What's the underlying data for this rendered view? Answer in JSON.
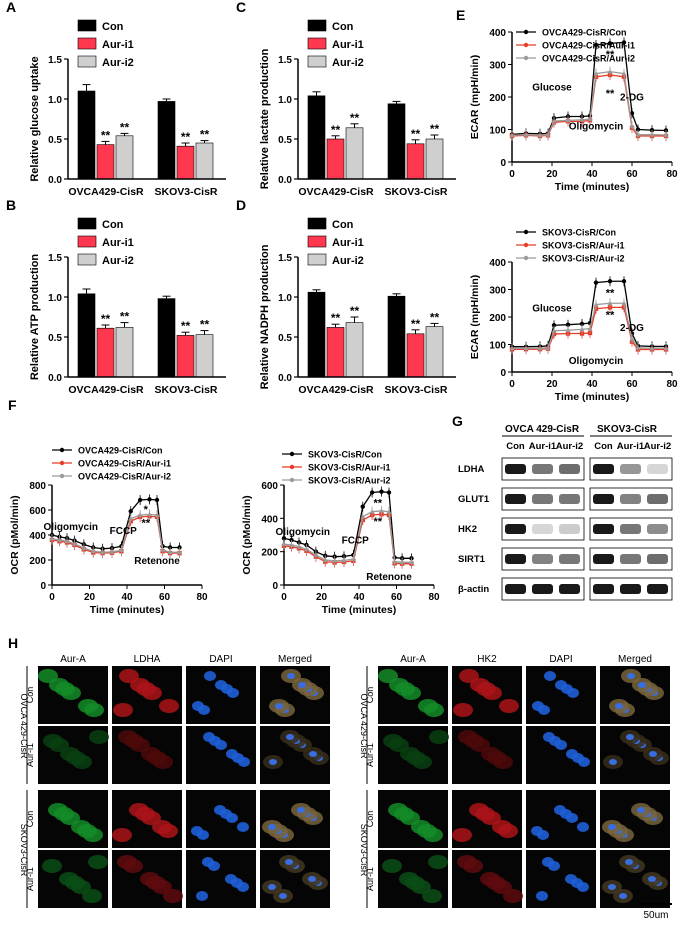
{
  "panels": {
    "A": {
      "letter": "A",
      "ylabel": "Relative glucose uptake",
      "ylim": [
        0,
        1.5
      ],
      "yticks": [
        "0.0",
        "0.5",
        "1.0",
        "1.5"
      ],
      "groups": [
        "OVCA429-CisR",
        "SKOV3-CisR"
      ],
      "values": [
        [
          1.1,
          0.43,
          0.54
        ],
        [
          0.97,
          0.41,
          0.45
        ]
      ],
      "errors": [
        [
          0.08,
          0.04,
          0.03
        ],
        [
          0.03,
          0.04,
          0.03
        ]
      ],
      "marks": [
        [
          "",
          "**",
          "**"
        ],
        [
          "",
          "**",
          "**"
        ]
      ]
    },
    "B": {
      "letter": "B",
      "ylabel": "Relative ATP production",
      "ylim": [
        0,
        1.5
      ],
      "yticks": [
        "0.0",
        "0.5",
        "1.0",
        "1.5"
      ],
      "groups": [
        "OVCA429-CisR",
        "SKOV3-CisR"
      ],
      "values": [
        [
          1.04,
          0.61,
          0.62
        ],
        [
          0.98,
          0.52,
          0.53
        ]
      ],
      "errors": [
        [
          0.06,
          0.04,
          0.06
        ],
        [
          0.03,
          0.04,
          0.05
        ]
      ],
      "marks": [
        [
          "",
          "**",
          "**"
        ],
        [
          "",
          "**",
          "**"
        ]
      ]
    },
    "C": {
      "letter": "C",
      "ylabel": "Relative lactate production",
      "ylim": [
        0,
        1.5
      ],
      "yticks": [
        "0.0",
        "0.5",
        "1.0",
        "1.5"
      ],
      "groups": [
        "OVCA429-CisR",
        "SKOV3-CisR"
      ],
      "values": [
        [
          1.04,
          0.5,
          0.64
        ],
        [
          0.94,
          0.44,
          0.5
        ]
      ],
      "errors": [
        [
          0.05,
          0.04,
          0.05
        ],
        [
          0.03,
          0.05,
          0.05
        ]
      ],
      "marks": [
        [
          "",
          "**",
          "**"
        ],
        [
          "",
          "**",
          "**"
        ]
      ]
    },
    "D": {
      "letter": "D",
      "ylabel": "Relative NADPH production",
      "ylim": [
        0,
        1.5
      ],
      "yticks": [
        "0.0",
        "0.5",
        "1.0",
        "1.5"
      ],
      "groups": [
        "OVCA429-CisR",
        "SKOV3-CisR"
      ],
      "values": [
        [
          1.06,
          0.62,
          0.68
        ],
        [
          1.01,
          0.54,
          0.63
        ]
      ],
      "errors": [
        [
          0.03,
          0.04,
          0.07
        ],
        [
          0.03,
          0.05,
          0.04
        ]
      ],
      "marks": [
        [
          "",
          "**",
          "**"
        ],
        [
          "",
          "**",
          "**"
        ]
      ]
    }
  },
  "bar_legend": [
    {
      "name": "Con",
      "color": "#000000"
    },
    {
      "name": "Aur-i1",
      "color": "#ff3850"
    },
    {
      "name": "Aur-i2",
      "color": "#cfcfcf"
    }
  ],
  "panel_E": {
    "letter": "E"
  },
  "panel_F": {
    "letter": "F"
  },
  "panel_G": {
    "letter": "G"
  },
  "panel_H": {
    "letter": "H"
  },
  "line_colors": [
    "#000000",
    "#e83a26",
    "#9a9a9a"
  ],
  "chart_data": [
    {
      "type": "line",
      "id": "E-top",
      "ylabel": "ECAR (mpH/min)",
      "xlabel": "Time (minutes)",
      "xlim": [
        0,
        80
      ],
      "ylim": [
        0,
        400
      ],
      "xticks": [
        0,
        20,
        40,
        60,
        80
      ],
      "yticks": [
        0,
        100,
        200,
        300,
        400
      ],
      "x": [
        0,
        7,
        14,
        18,
        21,
        28,
        35,
        39,
        42,
        49,
        56,
        60,
        63,
        70,
        77
      ],
      "series": [
        {
          "name": "OVCA429-CisR/Con",
          "values": [
            85,
            88,
            87,
            88,
            135,
            140,
            140,
            142,
            360,
            365,
            368,
            150,
            100,
            98,
            97
          ]
        },
        {
          "name": "OVCA429-CisR/Aur-i1",
          "values": [
            80,
            82,
            80,
            82,
            122,
            125,
            125,
            128,
            262,
            268,
            262,
            105,
            80,
            80,
            80
          ]
        },
        {
          "name": "OVCA429-CisR/Aur-i2",
          "values": [
            82,
            84,
            82,
            84,
            126,
            128,
            130,
            132,
            272,
            278,
            272,
            110,
            84,
            84,
            83
          ]
        }
      ],
      "annotations": [
        {
          "text": "Glucose",
          "x": 20,
          "y": 220
        },
        {
          "text": "Oligomycin",
          "x": 42,
          "y": 100
        },
        {
          "text": "2-DG",
          "x": 60,
          "y": 190
        },
        {
          "text": "**",
          "x": 49,
          "y": 320
        },
        {
          "text": "**",
          "x": 49,
          "y": 200
        }
      ]
    },
    {
      "type": "line",
      "id": "E-bottom",
      "ylabel": "ECAR (mpH/min)",
      "xlabel": "Time (minutes)",
      "xlim": [
        0,
        80
      ],
      "ylim": [
        0,
        400
      ],
      "xticks": [
        0,
        20,
        40,
        60,
        80
      ],
      "yticks": [
        0,
        100,
        200,
        300,
        400
      ],
      "x": [
        0,
        7,
        14,
        18,
        21,
        28,
        35,
        39,
        42,
        49,
        56,
        60,
        63,
        70,
        77
      ],
      "series": [
        {
          "name": "SKOV3-CisR/Con",
          "values": [
            92,
            92,
            93,
            95,
            170,
            172,
            175,
            178,
            325,
            330,
            330,
            140,
            95,
            93,
            93
          ]
        },
        {
          "name": "SKOV3-CisR/Aur-i1",
          "values": [
            82,
            83,
            83,
            85,
            138,
            140,
            140,
            142,
            230,
            235,
            235,
            110,
            82,
            82,
            82
          ]
        },
        {
          "name": "SKOV3-CisR/Aur-i2",
          "values": [
            86,
            86,
            86,
            88,
            150,
            152,
            155,
            158,
            245,
            250,
            250,
            120,
            88,
            86,
            86
          ]
        }
      ],
      "annotations": [
        {
          "text": "Glucose",
          "x": 20,
          "y": 220
        },
        {
          "text": "Oligomycin",
          "x": 42,
          "y": 30
        },
        {
          "text": "2-DG",
          "x": 60,
          "y": 150
        },
        {
          "text": "**",
          "x": 49,
          "y": 275
        },
        {
          "text": "**",
          "x": 49,
          "y": 195
        }
      ]
    },
    {
      "type": "line",
      "id": "F-left",
      "ylabel": "OCR (pMol/min)",
      "xlabel": "Time (minutes)",
      "xlim": [
        0,
        80
      ],
      "ylim": [
        0,
        800
      ],
      "xticks": [
        0,
        20,
        40,
        60,
        80
      ],
      "yticks": [
        0,
        200,
        400,
        600,
        800
      ],
      "x": [
        0,
        4,
        8,
        12,
        17,
        22,
        27,
        32,
        37,
        42,
        47,
        52,
        56,
        59,
        63,
        68
      ],
      "series": [
        {
          "name": "OVCA429-CisR/Con",
          "values": [
            400,
            385,
            375,
            355,
            325,
            300,
            290,
            295,
            310,
            590,
            680,
            685,
            680,
            310,
            300,
            300
          ]
        },
        {
          "name": "OVCA429-CisR/Aur-i1",
          "values": [
            360,
            350,
            340,
            320,
            285,
            260,
            255,
            258,
            270,
            510,
            545,
            550,
            545,
            270,
            255,
            255
          ]
        },
        {
          "name": "OVCA429-CisR/Aur-i2",
          "values": [
            370,
            360,
            350,
            330,
            295,
            270,
            262,
            265,
            278,
            530,
            560,
            565,
            560,
            280,
            262,
            262
          ]
        }
      ],
      "annotations": [
        {
          "text": "Oligomycin",
          "x": 10,
          "y": 440
        },
        {
          "text": "FCCP",
          "x": 38,
          "y": 410
        },
        {
          "text": "Retenone",
          "x": 56,
          "y": 170
        },
        {
          "text": "*",
          "x": 50,
          "y": 575
        },
        {
          "text": "**",
          "x": 50,
          "y": 470
        }
      ]
    },
    {
      "type": "line",
      "id": "F-right",
      "ylabel": "OCR (pMol/min)",
      "xlabel": "Time (minutes)",
      "xlim": [
        0,
        80
      ],
      "ylim": [
        0,
        600
      ],
      "xticks": [
        0,
        20,
        40,
        60,
        80
      ],
      "yticks": [
        0,
        200,
        400,
        600
      ],
      "x": [
        0,
        4,
        8,
        12,
        17,
        22,
        27,
        32,
        37,
        42,
        47,
        52,
        56,
        59,
        63,
        68
      ],
      "series": [
        {
          "name": "SKOV3-CisR/Con",
          "values": [
            280,
            270,
            255,
            240,
            200,
            175,
            170,
            172,
            180,
            470,
            555,
            560,
            555,
            165,
            160,
            160
          ]
        },
        {
          "name": "SKOV3-CisR/Aur-i1",
          "values": [
            235,
            230,
            220,
            205,
            170,
            140,
            135,
            138,
            145,
            390,
            420,
            425,
            420,
            130,
            128,
            128
          ]
        },
        {
          "name": "SKOV3-CisR/Aur-i2",
          "values": [
            245,
            240,
            230,
            215,
            180,
            150,
            145,
            148,
            155,
            410,
            440,
            445,
            440,
            140,
            136,
            136
          ]
        }
      ],
      "annotations": [
        {
          "text": "Oligomycin",
          "x": 10,
          "y": 300
        },
        {
          "text": "FCCP",
          "x": 38,
          "y": 250
        },
        {
          "text": "Retenone",
          "x": 56,
          "y": 30
        },
        {
          "text": "**",
          "x": 50,
          "y": 470
        },
        {
          "text": "**",
          "x": 50,
          "y": 360
        }
      ]
    }
  ],
  "blot": {
    "headers": [
      "OVCA 429-CisR",
      "SKOV3-CisR"
    ],
    "lanes": [
      "Con",
      "Aur-i1",
      "Aur-i2",
      "Con",
      "Aur-i1",
      "Aur-i2"
    ],
    "rows": [
      {
        "label": "LDHA",
        "intensity": [
          1.0,
          0.55,
          0.6,
          1.0,
          0.4,
          0.1
        ]
      },
      {
        "label": "GLUT1",
        "intensity": [
          1.0,
          0.55,
          0.55,
          1.0,
          0.5,
          0.6
        ]
      },
      {
        "label": "HK2",
        "intensity": [
          1.0,
          0.1,
          0.15,
          1.0,
          0.55,
          0.45
        ]
      },
      {
        "label": "SIRT1",
        "intensity": [
          1.0,
          0.5,
          0.55,
          1.0,
          0.55,
          0.6
        ]
      },
      {
        "label": "β-actin",
        "intensity": [
          1.0,
          1.0,
          1.0,
          1.0,
          1.0,
          1.0
        ]
      }
    ]
  },
  "micro": {
    "left_headers": [
      "Aur-A",
      "LDHA",
      "DAPI",
      "Merged"
    ],
    "right_headers": [
      "Aur-A",
      "HK2",
      "DAPI",
      "Merged"
    ],
    "group_labels": [
      "OVCA 429-CisR",
      "SKOV3-CisR"
    ],
    "row_labels": [
      "Con",
      "Aur-i1",
      "Con",
      "Aur-i1"
    ],
    "scalebar": "50um"
  }
}
